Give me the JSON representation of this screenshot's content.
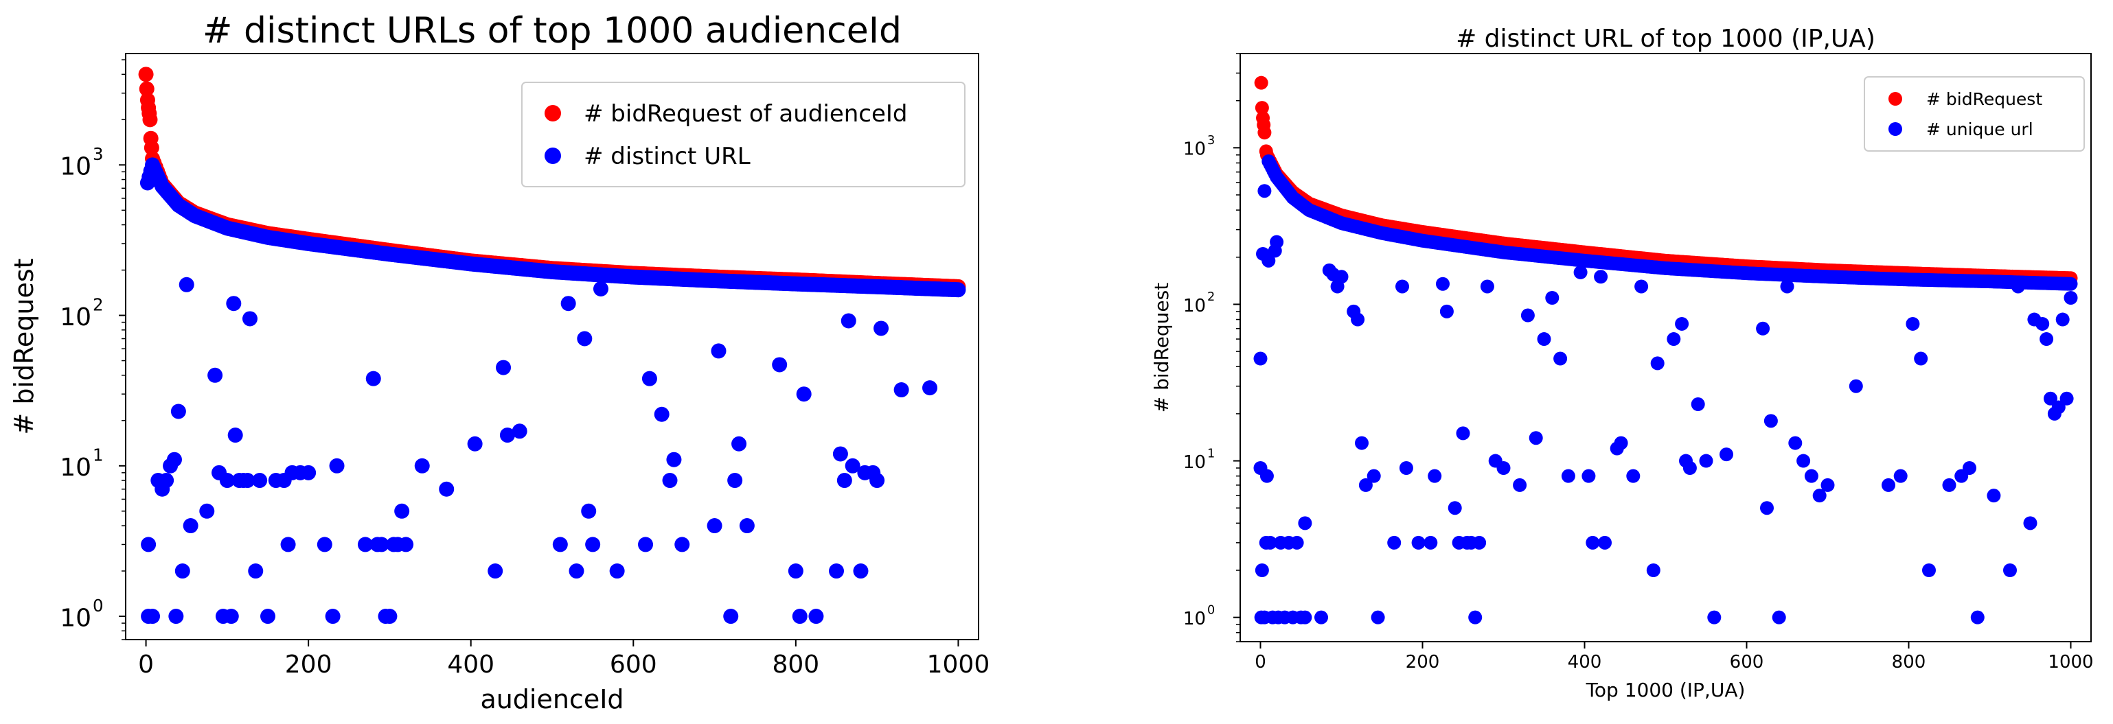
{
  "chart_data": [
    {
      "type": "scatter",
      "title": "# distinct URLs of top 1000 audienceId",
      "xlabel": "audienceId",
      "ylabel": "# bidRequest",
      "xlim": [
        -25,
        1025
      ],
      "ylim": [
        0.7,
        5500
      ],
      "yscale": "log",
      "xticks": [
        0,
        200,
        400,
        600,
        800,
        1000
      ],
      "yticks": [
        1,
        10,
        100,
        1000
      ],
      "ytick_labels": [
        "10",
        "10",
        "10",
        "10"
      ],
      "ytick_exponents": [
        "0",
        "1",
        "2",
        "3"
      ],
      "legend_position": "upper right",
      "series": [
        {
          "name": "# bidRequest of audienceId",
          "color": "#ff0000",
          "head": [
            [
              0,
              4000
            ],
            [
              1,
              3200
            ],
            [
              2,
              2700
            ],
            [
              3,
              2400
            ],
            [
              4,
              2200
            ],
            [
              5,
              2000
            ],
            [
              6,
              1500
            ],
            [
              7,
              1300
            ]
          ],
          "curve": [
            [
              8,
              1100
            ],
            [
              20,
              750
            ],
            [
              40,
              560
            ],
            [
              60,
              480
            ],
            [
              100,
              400
            ],
            [
              150,
              350
            ],
            [
              200,
              320
            ],
            [
              300,
              270
            ],
            [
              400,
              230
            ],
            [
              500,
              205
            ],
            [
              600,
              190
            ],
            [
              700,
              180
            ],
            [
              800,
              172
            ],
            [
              900,
              163
            ],
            [
              1000,
              155
            ]
          ]
        },
        {
          "name": "# distinct URL",
          "color": "#0000ff",
          "curve": [
            [
              2,
              760
            ],
            [
              8,
              1000
            ],
            [
              20,
              720
            ],
            [
              40,
              540
            ],
            [
              60,
              460
            ],
            [
              100,
              380
            ],
            [
              150,
              330
            ],
            [
              200,
              300
            ],
            [
              300,
              255
            ],
            [
              400,
              220
            ],
            [
              500,
              195
            ],
            [
              600,
              180
            ],
            [
              700,
              170
            ],
            [
              800,
              162
            ],
            [
              900,
              155
            ],
            [
              1000,
              148
            ]
          ],
          "points": [
            [
              3,
              3
            ],
            [
              3,
              1
            ],
            [
              8,
              1
            ],
            [
              15,
              8
            ],
            [
              20,
              7
            ],
            [
              25,
              8
            ],
            [
              30,
              10
            ],
            [
              35,
              11
            ],
            [
              37,
              1
            ],
            [
              40,
              23
            ],
            [
              45,
              2
            ],
            [
              50,
              160
            ],
            [
              55,
              4
            ],
            [
              75,
              5
            ],
            [
              85,
              40
            ],
            [
              90,
              9
            ],
            [
              95,
              1
            ],
            [
              100,
              8
            ],
            [
              105,
              1
            ],
            [
              108,
              120
            ],
            [
              110,
              16
            ],
            [
              115,
              8
            ],
            [
              120,
              8
            ],
            [
              125,
              8
            ],
            [
              128,
              95
            ],
            [
              135,
              2
            ],
            [
              140,
              8
            ],
            [
              150,
              1
            ],
            [
              160,
              8
            ],
            [
              170,
              8
            ],
            [
              175,
              3
            ],
            [
              180,
              9
            ],
            [
              190,
              9
            ],
            [
              200,
              9
            ],
            [
              220,
              3
            ],
            [
              230,
              1
            ],
            [
              235,
              10
            ],
            [
              270,
              3
            ],
            [
              280,
              38
            ],
            [
              285,
              3
            ],
            [
              290,
              3
            ],
            [
              295,
              1
            ],
            [
              300,
              1
            ],
            [
              305,
              3
            ],
            [
              310,
              3
            ],
            [
              315,
              5
            ],
            [
              320,
              3
            ],
            [
              340,
              10
            ],
            [
              370,
              7
            ],
            [
              405,
              14
            ],
            [
              430,
              2
            ],
            [
              440,
              45
            ],
            [
              445,
              16
            ],
            [
              460,
              17
            ],
            [
              510,
              3
            ],
            [
              520,
              120
            ],
            [
              530,
              2
            ],
            [
              540,
              70
            ],
            [
              545,
              5
            ],
            [
              550,
              3
            ],
            [
              560,
              150
            ],
            [
              580,
              2
            ],
            [
              615,
              3
            ],
            [
              620,
              38
            ],
            [
              635,
              22
            ],
            [
              645,
              8
            ],
            [
              650,
              11
            ],
            [
              660,
              3
            ],
            [
              700,
              4
            ],
            [
              705,
              58
            ],
            [
              720,
              1
            ],
            [
              725,
              8
            ],
            [
              730,
              14
            ],
            [
              740,
              4
            ],
            [
              780,
              47
            ],
            [
              800,
              2
            ],
            [
              805,
              1
            ],
            [
              810,
              30
            ],
            [
              825,
              1
            ],
            [
              850,
              2
            ],
            [
              855,
              12
            ],
            [
              860,
              8
            ],
            [
              865,
              92
            ],
            [
              870,
              10
            ],
            [
              880,
              2
            ],
            [
              885,
              9
            ],
            [
              895,
              9
            ],
            [
              900,
              8
            ],
            [
              905,
              82
            ],
            [
              930,
              32
            ],
            [
              965,
              33
            ]
          ]
        }
      ]
    },
    {
      "type": "scatter",
      "title": "# distinct URL of top 1000 (IP,UA)",
      "xlabel": "Top 1000 (IP,UA)",
      "ylabel": "# bidRequest",
      "xlim": [
        -25,
        1025
      ],
      "ylim": [
        0.7,
        4000
      ],
      "yscale": "log",
      "xticks": [
        0,
        200,
        400,
        600,
        800,
        1000
      ],
      "yticks": [
        1,
        10,
        100,
        1000
      ],
      "ytick_labels": [
        "10",
        "10",
        "10",
        "10"
      ],
      "ytick_exponents": [
        "0",
        "1",
        "2",
        "3"
      ],
      "legend_position": "upper right",
      "series": [
        {
          "name": "# bidRequest",
          "color": "#ff0000",
          "head": [
            [
              1,
              2600
            ],
            [
              2,
              1800
            ],
            [
              3,
              1550
            ],
            [
              4,
              1400
            ],
            [
              5,
              1250
            ],
            [
              7,
              950
            ]
          ],
          "curve": [
            [
              8,
              900
            ],
            [
              20,
              680
            ],
            [
              40,
              520
            ],
            [
              60,
              440
            ],
            [
              100,
              370
            ],
            [
              150,
              320
            ],
            [
              200,
              290
            ],
            [
              300,
              245
            ],
            [
              400,
              215
            ],
            [
              500,
              190
            ],
            [
              600,
              175
            ],
            [
              700,
              165
            ],
            [
              800,
              158
            ],
            [
              900,
              152
            ],
            [
              1000,
              147
            ]
          ]
        },
        {
          "name": "# unique url",
          "color": "#0000ff",
          "curve": [
            [
              10,
              820
            ],
            [
              20,
              650
            ],
            [
              40,
              480
            ],
            [
              60,
              400
            ],
            [
              100,
              330
            ],
            [
              150,
              285
            ],
            [
              200,
              255
            ],
            [
              300,
              215
            ],
            [
              400,
              190
            ],
            [
              500,
              170
            ],
            [
              600,
              158
            ],
            [
              700,
              150
            ],
            [
              800,
              144
            ],
            [
              900,
              140
            ],
            [
              1000,
              135
            ]
          ],
          "points": [
            [
              0,
              45
            ],
            [
              0,
              9
            ],
            [
              2,
              2
            ],
            [
              1,
              1
            ],
            [
              3,
              210
            ],
            [
              5,
              530
            ],
            [
              5,
              1
            ],
            [
              7,
              3
            ],
            [
              8,
              8
            ],
            [
              10,
              190
            ],
            [
              12,
              3
            ],
            [
              15,
              1
            ],
            [
              18,
              220
            ],
            [
              20,
              250
            ],
            [
              22,
              1
            ],
            [
              25,
              3
            ],
            [
              30,
              1
            ],
            [
              35,
              3
            ],
            [
              40,
              1
            ],
            [
              45,
              3
            ],
            [
              50,
              1
            ],
            [
              55,
              4
            ],
            [
              55,
              1
            ],
            [
              75,
              1
            ],
            [
              85,
              165
            ],
            [
              90,
              155
            ],
            [
              95,
              130
            ],
            [
              100,
              150
            ],
            [
              115,
              90
            ],
            [
              120,
              80
            ],
            [
              125,
              13
            ],
            [
              130,
              7
            ],
            [
              140,
              8
            ],
            [
              145,
              1
            ],
            [
              165,
              3
            ],
            [
              175,
              130
            ],
            [
              180,
              9
            ],
            [
              195,
              3
            ],
            [
              210,
              3
            ],
            [
              215,
              8
            ],
            [
              225,
              135
            ],
            [
              230,
              90
            ],
            [
              240,
              5
            ],
            [
              245,
              3
            ],
            [
              250,
              15
            ],
            [
              255,
              3
            ],
            [
              260,
              3
            ],
            [
              265,
              1
            ],
            [
              270,
              3
            ],
            [
              280,
              130
            ],
            [
              290,
              10
            ],
            [
              300,
              9
            ],
            [
              320,
              7
            ],
            [
              330,
              85
            ],
            [
              340,
              14
            ],
            [
              350,
              60
            ],
            [
              360,
              110
            ],
            [
              370,
              45
            ],
            [
              380,
              8
            ],
            [
              395,
              160
            ],
            [
              405,
              8
            ],
            [
              410,
              3
            ],
            [
              420,
              150
            ],
            [
              425,
              3
            ],
            [
              440,
              12
            ],
            [
              445,
              13
            ],
            [
              460,
              8
            ],
            [
              470,
              130
            ],
            [
              485,
              2
            ],
            [
              490,
              42
            ],
            [
              510,
              60
            ],
            [
              520,
              75
            ],
            [
              525,
              10
            ],
            [
              530,
              9
            ],
            [
              540,
              23
            ],
            [
              550,
              10
            ],
            [
              560,
              1
            ],
            [
              575,
              11
            ],
            [
              620,
              70
            ],
            [
              625,
              5
            ],
            [
              630,
              18
            ],
            [
              640,
              1
            ],
            [
              650,
              130
            ],
            [
              660,
              13
            ],
            [
              670,
              10
            ],
            [
              680,
              8
            ],
            [
              690,
              6
            ],
            [
              700,
              7
            ],
            [
              735,
              30
            ],
            [
              775,
              7
            ],
            [
              790,
              8
            ],
            [
              805,
              75
            ],
            [
              815,
              45
            ],
            [
              825,
              2
            ],
            [
              850,
              7
            ],
            [
              865,
              8
            ],
            [
              875,
              9
            ],
            [
              885,
              1
            ],
            [
              905,
              6
            ],
            [
              925,
              2
            ],
            [
              935,
              130
            ],
            [
              950,
              4
            ],
            [
              955,
              80
            ],
            [
              965,
              75
            ],
            [
              970,
              60
            ],
            [
              975,
              25
            ],
            [
              980,
              20
            ],
            [
              985,
              22
            ],
            [
              990,
              80
            ],
            [
              995,
              25
            ],
            [
              1000,
              110
            ]
          ]
        }
      ]
    }
  ]
}
